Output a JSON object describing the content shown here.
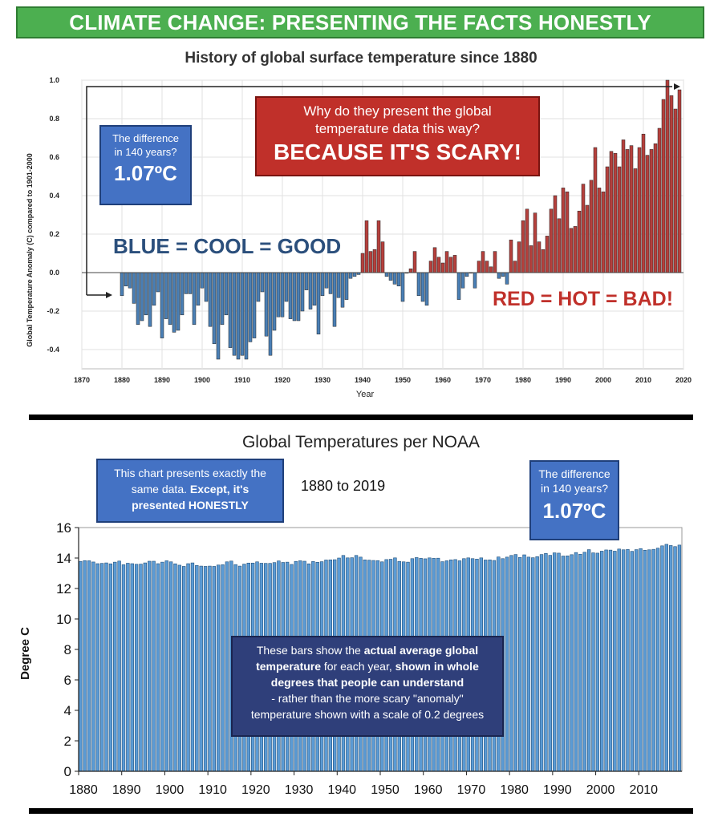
{
  "banner": {
    "text": "CLIMATE CHANGE: PRESENTING THE FACTS HONESTLY",
    "color": "#4caf50"
  },
  "top_chart": {
    "title": "History of global surface temperature since 1880",
    "ylabel": "Global Temperature Anomaly (C) compared to 1901-2000",
    "xlabel": "Year",
    "annotation_difference": {
      "line1": "The difference",
      "line2": "in 140 years?",
      "value": "1.07ºC"
    },
    "annotation_scary": {
      "line1": "Why do they present the global",
      "line2": "temperature data this way?",
      "big": "BECAUSE IT'S SCARY!"
    },
    "label_blue": "BLUE = COOL = GOOD",
    "label_red": "RED = HOT = BAD!"
  },
  "bottom_chart": {
    "title": "Global Temperatures per NOAA",
    "range": "1880 to 2019",
    "ylabel": "Degree C",
    "annotation_exact": {
      "line1": "This chart presents exactly the",
      "line2a": "same data. ",
      "line2b": "Except, it's",
      "line3": "presented HONESTLY"
    },
    "annotation_difference": {
      "line1": "The difference",
      "line2": "in 140 years?",
      "value": "1.07ºC"
    },
    "annotation_bars": {
      "l1a": "These bars show the ",
      "l1b": "actual average global",
      "l2a": "temperature",
      "l2b": " for each year, ",
      "l2c": "shown in whole",
      "l3": "degrees that people can understand",
      "l4": "- rather than the more scary \"anomaly\"",
      "l5": "temperature shown with a scale of 0.2 degrees"
    }
  },
  "chart_data": [
    {
      "type": "bar",
      "title": "History of global surface temperature since 1880",
      "xlabel": "Year",
      "ylabel": "Global Temperature Anomaly (C) compared to 1901-2000",
      "xlim": [
        1870,
        2020
      ],
      "ylim": [
        -0.5,
        1.0
      ],
      "xticks": [
        1870,
        1880,
        1890,
        1900,
        1910,
        1920,
        1930,
        1940,
        1950,
        1960,
        1970,
        1980,
        1990,
        2000,
        2010,
        2020
      ],
      "yticks": [
        -0.4,
        -0.2,
        0.0,
        0.2,
        0.4,
        0.6,
        0.8,
        1.0
      ],
      "ytick_labels": [
        "-0.4",
        "-0.2",
        "0.0",
        "0.2",
        "0.4",
        "0.6",
        "0.8",
        "1.0"
      ],
      "grid": true,
      "colors": {
        "negative": "#4a7fb5",
        "positive": "#b5403c"
      },
      "x_start": 1880,
      "values": [
        -0.12,
        -0.07,
        -0.08,
        -0.16,
        -0.27,
        -0.25,
        -0.22,
        -0.28,
        -0.17,
        -0.1,
        -0.34,
        -0.24,
        -0.27,
        -0.31,
        -0.3,
        -0.22,
        -0.11,
        -0.11,
        -0.27,
        -0.17,
        -0.08,
        -0.15,
        -0.28,
        -0.37,
        -0.45,
        -0.27,
        -0.22,
        -0.39,
        -0.43,
        -0.45,
        -0.43,
        -0.45,
        -0.36,
        -0.34,
        -0.15,
        -0.1,
        -0.33,
        -0.43,
        -0.3,
        -0.23,
        -0.23,
        -0.15,
        -0.24,
        -0.25,
        -0.25,
        -0.2,
        -0.09,
        -0.19,
        -0.17,
        -0.32,
        -0.12,
        -0.08,
        -0.11,
        -0.28,
        -0.13,
        -0.18,
        -0.14,
        -0.03,
        -0.02,
        -0.01,
        0.1,
        0.27,
        0.11,
        0.12,
        0.27,
        0.16,
        -0.02,
        -0.04,
        -0.06,
        -0.07,
        -0.15,
        0.0,
        0.02,
        0.11,
        -0.12,
        -0.15,
        -0.17,
        0.06,
        0.13,
        0.08,
        0.05,
        0.11,
        0.08,
        0.09,
        -0.14,
        -0.08,
        -0.02,
        0.0,
        -0.08,
        0.06,
        0.11,
        0.06,
        0.03,
        0.11,
        -0.03,
        -0.02,
        -0.06,
        0.17,
        0.06,
        0.16,
        0.27,
        0.33,
        0.14,
        0.31,
        0.16,
        0.12,
        0.19,
        0.33,
        0.4,
        0.28,
        0.44,
        0.42,
        0.23,
        0.24,
        0.32,
        0.46,
        0.35,
        0.48,
        0.65,
        0.44,
        0.42,
        0.55,
        0.63,
        0.62,
        0.55,
        0.69,
        0.64,
        0.66,
        0.54,
        0.65,
        0.72,
        0.61,
        0.64,
        0.67,
        0.75,
        0.9,
        1.0,
        0.92,
        0.85,
        0.95
      ],
      "annotations": [
        "The difference in 140 years? 1.07ºC",
        "Why do they present the global temperature data this way? BECAUSE IT'S SCARY!",
        "BLUE = COOL = GOOD",
        "RED = HOT = BAD!"
      ]
    },
    {
      "type": "bar",
      "title": "Global Temperatures per NOAA",
      "subtitle": "1880 to 2019",
      "xlabel": "",
      "ylabel": "Degree C",
      "xlim": [
        1880,
        2019
      ],
      "ylim": [
        0,
        16
      ],
      "xticks": [
        1880,
        1890,
        1900,
        1910,
        1920,
        1930,
        1940,
        1950,
        1960,
        1970,
        1980,
        1990,
        2000,
        2010
      ],
      "yticks": [
        0,
        2,
        4,
        6,
        8,
        10,
        12,
        14,
        16
      ],
      "grid": false,
      "colors": {
        "bar": "#5b9bd5",
        "bar_edge": "#1f4e79"
      },
      "x_start": 1880,
      "baseline": 13.9,
      "note": "values = 13.9 + anomaly of the same years",
      "annotations": [
        "This chart presents exactly the same data. Except, it's presented HONESTLY",
        "The difference in 140 years? 1.07ºC",
        "These bars show the actual average global temperature for each year, shown in whole degrees that people can understand - rather than the more scary \"anomaly\" temperature shown with a scale of 0.2 degrees"
      ]
    }
  ]
}
